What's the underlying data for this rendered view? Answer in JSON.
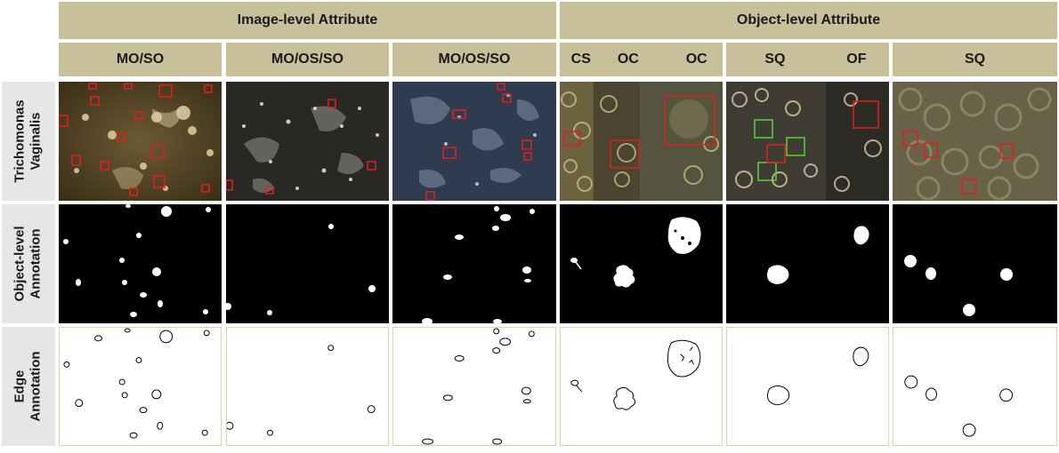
{
  "header": {
    "image_level": "Image-level Attribute",
    "object_level": "Object-level Attribute"
  },
  "columns": [
    {
      "labels": [
        "MO/SO"
      ]
    },
    {
      "labels": [
        "MO/OS/SO"
      ]
    },
    {
      "labels": [
        "MO/OS/SO"
      ]
    },
    {
      "labels": [
        "CS",
        "OC",
        "OC"
      ]
    },
    {
      "labels": [
        "SQ",
        "OF"
      ]
    },
    {
      "labels": [
        "SQ"
      ]
    }
  ],
  "rows": {
    "image": "Trichomonas\nVaginalis",
    "object": "Object-level\nAnnotation",
    "edge": "Edge\nAnnotation"
  },
  "colors": {
    "header_bg": "#c8bf9b",
    "row_label_bg": "#e6e6e6",
    "box_red": "#e0201c",
    "box_green": "#5ad23c"
  }
}
